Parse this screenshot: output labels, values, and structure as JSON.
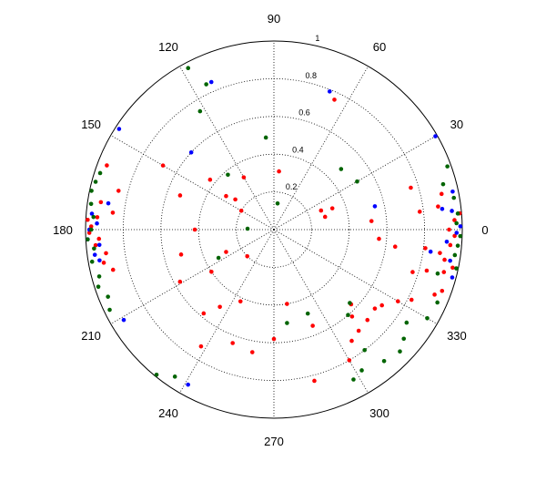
{
  "chart_data": {
    "type": "scatter",
    "coordinate_system": "polar",
    "title": "",
    "theta_unit": "degrees",
    "r_range": [
      0,
      1
    ],
    "r_ticks": [
      "0.2",
      "0.4",
      "0.6",
      "0.8",
      "1"
    ],
    "theta_ticks": [
      "0",
      "30",
      "60",
      "90",
      "120",
      "150",
      "180",
      "210",
      "240",
      "270",
      "300",
      "330"
    ],
    "grid": true,
    "grid_style": "dotted",
    "colors": {
      "red": "#ff0000",
      "blue": "#0000ff",
      "green": "#006400"
    },
    "series": [
      {
        "color": "red",
        "points": [
          [
            3,
            0.96
          ],
          [
            8,
            0.88
          ],
          [
            12,
            0.91
          ],
          [
            355,
            0.94
          ],
          [
            350,
            0.92
          ],
          [
            348,
            0.97
          ],
          [
            5,
            0.99
          ],
          [
            0,
            0.93
          ],
          [
            358,
            0.96
          ],
          [
            352,
            0.89
          ],
          [
            346,
            0.93
          ],
          [
            340,
            0.95
          ],
          [
            338,
            0.92
          ],
          [
            17,
            0.76
          ],
          [
            7,
            0.78
          ],
          [
            353,
            0.81
          ],
          [
            343,
            0.77
          ],
          [
            181,
            0.98
          ],
          [
            179,
            0.97
          ],
          [
            177,
            0.99
          ],
          [
            183,
            0.93
          ],
          [
            185,
            0.95
          ],
          [
            176,
            0.94
          ],
          [
            171,
            0.93
          ],
          [
            188,
            0.9
          ],
          [
            191,
            0.92
          ],
          [
            194,
            0.88
          ],
          [
            166,
            0.85
          ],
          [
            174,
            0.86
          ],
          [
            159,
            0.95
          ],
          [
            65,
            0.76
          ],
          [
            120,
            0.32
          ],
          [
            150,
            0.68
          ],
          [
            160,
            0.53
          ],
          [
            142,
            0.43
          ],
          [
            145,
            0.31
          ],
          [
            142,
            0.26
          ],
          [
            150,
            0.2
          ],
          [
            180,
            0.42
          ],
          [
            195,
            0.51
          ],
          [
            209,
            0.57
          ],
          [
            214,
            0.4
          ],
          [
            225,
            0.2
          ],
          [
            205,
            0.28
          ],
          [
            245,
            0.42
          ],
          [
            235,
            0.5
          ],
          [
            230,
            0.58
          ],
          [
            238,
            0.73
          ],
          [
            250,
            0.64
          ],
          [
            260,
            0.66
          ],
          [
            270,
            0.58
          ],
          [
            280,
            0.4
          ],
          [
            292,
            0.55
          ],
          [
            316,
            0.57
          ],
          [
            312,
            0.62
          ],
          [
            305,
            0.72
          ],
          [
            300,
            0.8
          ],
          [
            285,
            0.83
          ],
          [
            325,
            0.7
          ],
          [
            330,
            0.76
          ],
          [
            322,
            0.68
          ],
          [
            20,
            0.33
          ],
          [
            85,
            0.31
          ],
          [
            14,
            0.28
          ],
          [
            22,
            0.27
          ],
          [
            5,
            0.52
          ],
          [
            355,
            0.56
          ],
          [
            352,
            0.65
          ],
          [
            345,
            0.84
          ],
          [
            333,
            0.82
          ],
          [
            316,
            0.69
          ],
          [
            310,
            0.7
          ]
        ]
      },
      {
        "color": "blue",
        "points": [
          [
            1,
            0.99
          ],
          [
            359,
            0.97
          ],
          [
            6,
            0.95
          ],
          [
            356,
            0.92
          ],
          [
            350,
            0.95
          ],
          [
            345,
            0.98
          ],
          [
            7,
            0.9
          ],
          [
            12,
            0.97
          ],
          [
            30,
            0.99
          ],
          [
            13,
            0.55
          ],
          [
            352,
            0.84
          ],
          [
            180,
            0.98
          ],
          [
            183,
            0.99
          ],
          [
            175,
            0.97
          ],
          [
            178,
            0.94
          ],
          [
            188,
            0.96
          ],
          [
            185,
            0.93
          ],
          [
            171,
            0.89
          ],
          [
            190,
            0.94
          ],
          [
            211,
            0.93
          ],
          [
            68,
            0.79
          ],
          [
            113,
            0.85
          ],
          [
            137,
            0.6
          ],
          [
            147,
            0.98
          ],
          [
            241,
            0.94
          ]
        ]
      },
      {
        "color": "green",
        "points": [
          [
            5,
            0.98
          ],
          [
            2,
            0.97
          ],
          [
            358,
            0.99
          ],
          [
            355,
            0.98
          ],
          [
            352,
            0.97
          ],
          [
            348,
            0.99
          ],
          [
            10,
            0.97
          ],
          [
            15,
            0.93
          ],
          [
            20,
            0.98
          ],
          [
            345,
            0.9
          ],
          [
            336,
            0.95
          ],
          [
            330,
            0.94
          ],
          [
            325,
            0.86
          ],
          [
            320,
            0.9
          ],
          [
            316,
            0.93
          ],
          [
            310,
            0.91
          ],
          [
            307,
            0.8
          ],
          [
            302,
            0.88
          ],
          [
            298,
            0.9
          ],
          [
            183,
            0.99
          ],
          [
            180,
            0.97
          ],
          [
            176,
            0.96
          ],
          [
            172,
            0.98
          ],
          [
            168,
            0.99
          ],
          [
            165,
            0.98
          ],
          [
            162,
            0.97
          ],
          [
            186,
            0.96
          ],
          [
            190,
            0.98
          ],
          [
            195,
            0.96
          ],
          [
            198,
            0.98
          ],
          [
            202,
            0.95
          ],
          [
            206,
            0.97
          ],
          [
            231,
            0.99
          ],
          [
            236,
            0.94
          ],
          [
            118,
            0.97
          ],
          [
            115,
            0.85
          ],
          [
            122,
            0.74
          ],
          [
            95,
            0.49
          ],
          [
            42,
            0.48
          ],
          [
            30,
            0.51
          ],
          [
            82,
            0.14
          ],
          [
            130,
            0.38
          ],
          [
            178,
            0.14
          ],
          [
            207,
            0.33
          ],
          [
            278,
            0.5
          ],
          [
            292,
            0.48
          ],
          [
            311,
            0.6
          ],
          [
            316,
            0.56
          ]
        ]
      }
    ]
  }
}
